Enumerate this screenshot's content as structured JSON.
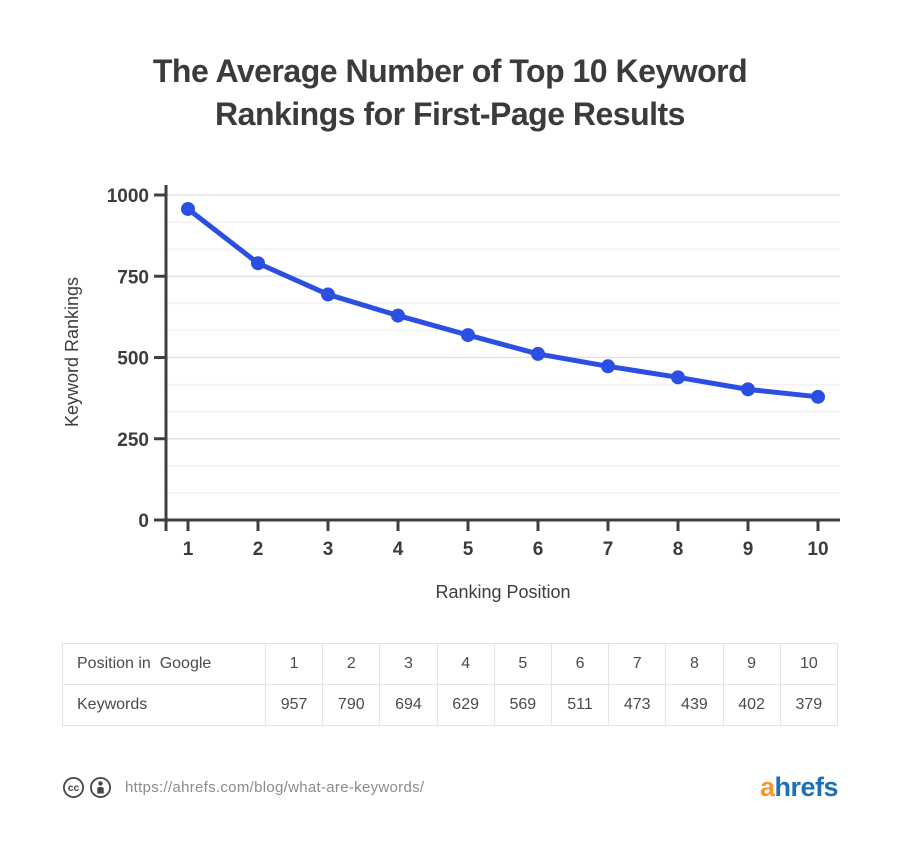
{
  "title": {
    "line1": "The Average Number of Top 10 Keyword",
    "line2": "Rankings for First-Page Results"
  },
  "chart_data": {
    "type": "line",
    "title": "The Average Number of Top 10 Keyword Rankings for First-Page Results",
    "x": [
      1,
      2,
      3,
      4,
      5,
      6,
      7,
      8,
      9,
      10
    ],
    "y": [
      957,
      790,
      694,
      629,
      569,
      511,
      473,
      439,
      402,
      379
    ],
    "xlabel": "Ranking Position",
    "ylabel": "Keyword Rankings",
    "yticks": [
      0,
      250,
      500,
      750,
      1000
    ],
    "ylim": [
      0,
      1000
    ],
    "grid": "horizontal, minor lines divide each 250 interval into 3",
    "legend": "none",
    "line_color": "#2b4fe2",
    "axis_color": "#3f3f3f",
    "major_grid_color": "#e2e2e2",
    "minor_grid_color": "#f2f2f2"
  },
  "table": {
    "row1_label": "Position in  Google",
    "row2_label": "Keywords",
    "positions": [
      "1",
      "2",
      "3",
      "4",
      "5",
      "6",
      "7",
      "8",
      "9",
      "10"
    ],
    "keywords": [
      "957",
      "790",
      "694",
      "629",
      "569",
      "511",
      "473",
      "439",
      "402",
      "379"
    ]
  },
  "footer": {
    "icons": [
      "cc-icon",
      "attribution-icon"
    ],
    "url": "https://ahrefs.com/blog/what-are-keywords/",
    "logo": {
      "orange_part": "a",
      "blue_part": "hrefs",
      "orange": "#f8952d",
      "blue": "#1d70b7"
    }
  }
}
